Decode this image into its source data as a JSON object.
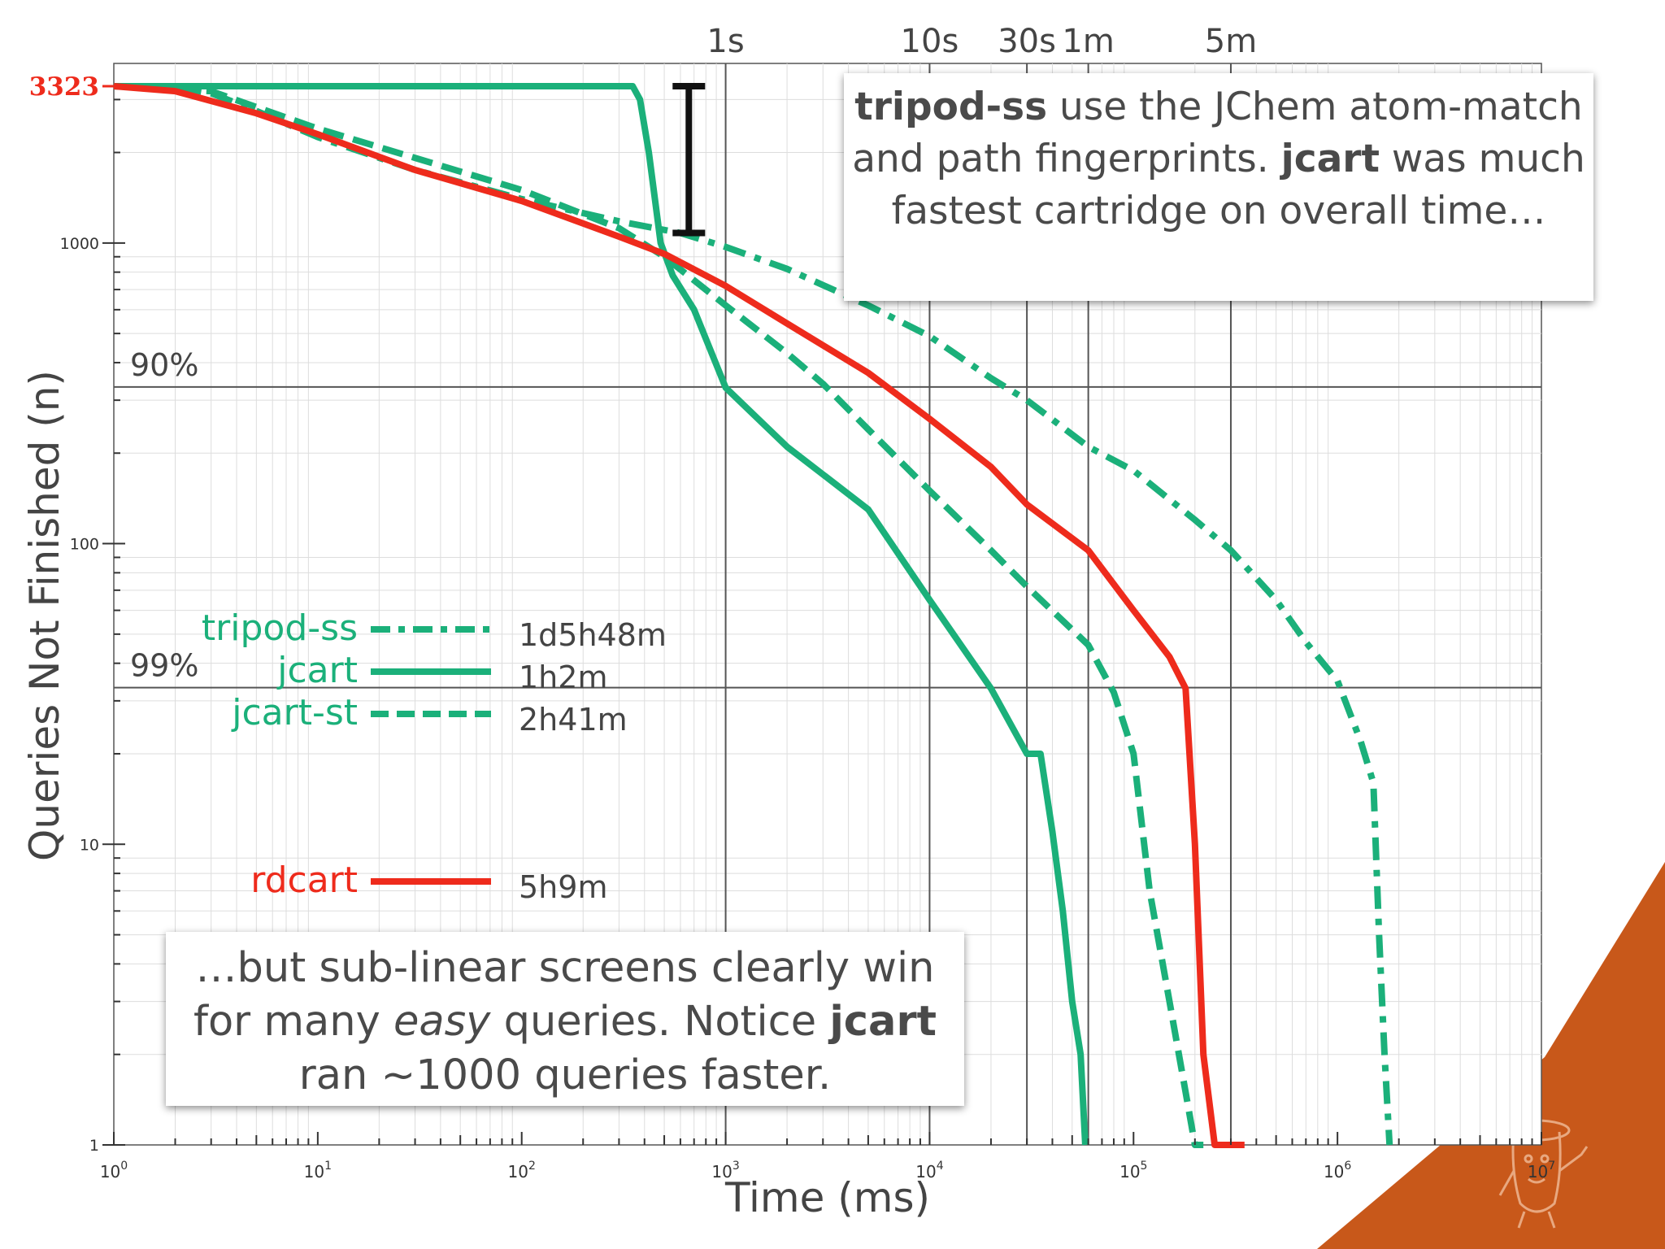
{
  "colors": {
    "green": "#1bb07a",
    "red": "#ee2b1c",
    "dark": "#444444",
    "grid_major": "#555555",
    "grid_minor": "#dddddd",
    "mascot_bg": "#c8581a"
  },
  "chart_data": {
    "type": "line",
    "xlabel": "Time (ms)",
    "ylabel": "Queries Not Finished (n)",
    "x_scale": "log",
    "y_scale": "log",
    "xlim": [
      1,
      10000000
    ],
    "ylim": [
      1,
      3323
    ],
    "x_ticks": [
      {
        "value": 1,
        "label": "10^0"
      },
      {
        "value": 10,
        "label": "10^1"
      },
      {
        "value": 100,
        "label": "10^2"
      },
      {
        "value": 1000,
        "label": "10^3"
      },
      {
        "value": 10000,
        "label": "10^4"
      },
      {
        "value": 100000,
        "label": "10^5"
      },
      {
        "value": 1000000,
        "label": "10^6"
      },
      {
        "value": 10000000,
        "label": "10^7"
      }
    ],
    "y_ticks": [
      {
        "value": 1,
        "label": "1"
      },
      {
        "value": 10,
        "label": "10"
      },
      {
        "value": 100,
        "label": "100"
      },
      {
        "value": 1000,
        "label": "1000"
      }
    ],
    "y_top_label": {
      "value": 3323,
      "label": "3323",
      "color": "#ee2b1c"
    },
    "top_time_markers": [
      {
        "value": 1000,
        "label": "1s"
      },
      {
        "value": 10000,
        "label": "10s"
      },
      {
        "value": 30000,
        "label": "30s"
      },
      {
        "value": 60000,
        "label": "1m"
      },
      {
        "value": 300000,
        "label": "5m"
      }
    ],
    "percent_lines": [
      {
        "value": 332,
        "label": "90%"
      },
      {
        "value": 33.2,
        "label": "99%"
      }
    ],
    "error_bar": {
      "x": 660,
      "y_low": 1080,
      "y_high": 3323
    },
    "series": [
      {
        "name": "tripod-ss",
        "total": "1d5h48m",
        "color": "#1bb07a",
        "style": "dashdot",
        "points": [
          [
            1,
            3323
          ],
          [
            2,
            3300
          ],
          [
            3,
            3150
          ],
          [
            5,
            2750
          ],
          [
            10,
            2250
          ],
          [
            30,
            1750
          ],
          [
            100,
            1400
          ],
          [
            300,
            1180
          ],
          [
            600,
            1080
          ],
          [
            1000,
            970
          ],
          [
            2000,
            820
          ],
          [
            5000,
            620
          ],
          [
            10000,
            490
          ],
          [
            20000,
            355
          ],
          [
            30000,
            300
          ],
          [
            60000,
            210
          ],
          [
            100000,
            175
          ],
          [
            200000,
            120
          ],
          [
            300000,
            95
          ],
          [
            500000,
            65
          ],
          [
            700000,
            47
          ],
          [
            1000000,
            35
          ],
          [
            1300000,
            22
          ],
          [
            1500000,
            16
          ],
          [
            1600000,
            5
          ],
          [
            1700000,
            2
          ],
          [
            1800000,
            1
          ]
        ]
      },
      {
        "name": "jcart",
        "total": "1h2m",
        "color": "#1bb07a",
        "style": "solid",
        "points": [
          [
            1,
            3323
          ],
          [
            350,
            3323
          ],
          [
            380,
            3000
          ],
          [
            420,
            2000
          ],
          [
            480,
            1000
          ],
          [
            550,
            780
          ],
          [
            700,
            600
          ],
          [
            1000,
            330
          ],
          [
            2000,
            210
          ],
          [
            5000,
            130
          ],
          [
            10000,
            65
          ],
          [
            20000,
            33
          ],
          [
            30000,
            20
          ],
          [
            35000,
            20
          ],
          [
            40000,
            11
          ],
          [
            45000,
            6
          ],
          [
            50000,
            3
          ],
          [
            55000,
            2
          ],
          [
            58000,
            1
          ]
        ]
      },
      {
        "name": "jcart-st",
        "total": "2h41m",
        "color": "#1bb07a",
        "style": "dashed",
        "points": [
          [
            1,
            3323
          ],
          [
            3,
            3200
          ],
          [
            10,
            2400
          ],
          [
            100,
            1500
          ],
          [
            300,
            1120
          ],
          [
            500,
            900
          ],
          [
            1000,
            620
          ],
          [
            2000,
            430
          ],
          [
            3000,
            340
          ],
          [
            5000,
            240
          ],
          [
            10000,
            150
          ],
          [
            20000,
            95
          ],
          [
            30000,
            72
          ],
          [
            60000,
            46
          ],
          [
            80000,
            32
          ],
          [
            100000,
            20
          ],
          [
            120000,
            7
          ],
          [
            150000,
            3
          ],
          [
            180000,
            1.5
          ],
          [
            200000,
            1
          ],
          [
            220000,
            1
          ]
        ]
      },
      {
        "name": "rdcart",
        "total": "5h9m",
        "color": "#ee2b1c",
        "style": "solid",
        "points": [
          [
            1,
            3323
          ],
          [
            2,
            3200
          ],
          [
            5,
            2700
          ],
          [
            10,
            2300
          ],
          [
            30,
            1750
          ],
          [
            100,
            1380
          ],
          [
            300,
            1050
          ],
          [
            500,
            920
          ],
          [
            1000,
            720
          ],
          [
            2000,
            540
          ],
          [
            5000,
            370
          ],
          [
            10000,
            260
          ],
          [
            20000,
            180
          ],
          [
            30000,
            135
          ],
          [
            60000,
            95
          ],
          [
            100000,
            60
          ],
          [
            150000,
            42
          ],
          [
            180000,
            33
          ],
          [
            200000,
            10
          ],
          [
            220000,
            2
          ],
          [
            250000,
            1
          ],
          [
            350000,
            1
          ]
        ]
      }
    ]
  },
  "annotations": {
    "top": {
      "b1": "tripod-ss",
      "t1": " use the JChem atom-match and path fingerprints. ",
      "b2": "jcart",
      "t2": " was much fastest cartridge on overall time…"
    },
    "bottom": {
      "t1": "…but sub-linear screens clearly win for many ",
      "i1": "easy",
      "t2": " queries. Notice ",
      "b1": "jcart",
      "t3": " ran ~1000 queries faster."
    }
  }
}
